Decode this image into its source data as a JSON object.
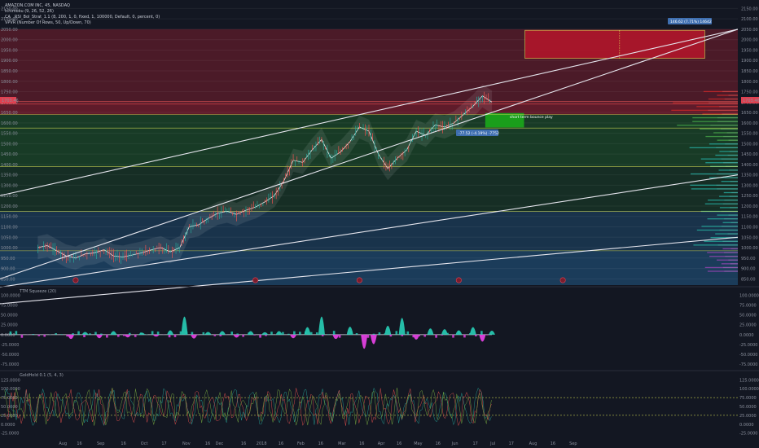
{
  "header": {
    "symbol": "AMAZON.COM INC, 45, NASDAQ",
    "indicators": [
      "Ichimoku (9, 26, 52, 26)",
      "CA__RSI_Bol_Strat_1.1 (8, 200, 1, 0, fixed, 1, 100000, Default, 0, percent, 0)",
      "VPVR (Number Of Rows, 50, Up/Down, 70)"
    ]
  },
  "price_label": "1703.46",
  "colors": {
    "bg": "#131722",
    "red_zone": "#b0162b",
    "green_zone": "#1aa31a",
    "teal": "#26c6b0",
    "magenta": "#e040e0",
    "line_white": "#e6e6ee",
    "red_band": "#7a1d2d",
    "green_band": "#1e5a2a",
    "blue_band": "#1f4a6e"
  },
  "annotations": {
    "target": "146.62 (7.71%) 14642",
    "pullback": "-77.52 (-4.19%) -7752",
    "bounce": "short term bounce play"
  },
  "panes": {
    "squeeze": "TTM Squeeze (20)",
    "oscillator": "GoldHold 0.1 (5, 4, 3)"
  },
  "chart_data": [
    {
      "type": "line",
      "name": "price",
      "x_ticks": [
        "Aug",
        "16",
        "Sep",
        "16",
        "Oct",
        "17",
        "Nov",
        "16",
        "Dec",
        "16",
        "2018",
        "16",
        "Feb",
        "16",
        "Mar",
        "16",
        "Apr",
        "16",
        "May",
        "16",
        "Jun",
        "17",
        "Jul",
        "17",
        "Aug",
        "16",
        "Sep"
      ],
      "y_ticks": [
        850,
        900,
        950,
        1000,
        1050,
        1100,
        1150,
        1200,
        1250,
        1300,
        1350,
        1400,
        1450,
        1500,
        1550,
        1600,
        1650,
        1700,
        1750,
        1800,
        1850,
        1900,
        1950,
        2000,
        2050,
        2100,
        2150
      ],
      "y_tick_labels": [
        "850.00",
        "900.00",
        "950.00",
        "1000.00",
        "1050.00",
        "1100.00",
        "1150.00",
        "1200.00",
        "1250.00",
        "1300.00",
        "1350.00",
        "1400.00",
        "1450.00",
        "1500.00",
        "1550.00",
        "1600.00",
        "1650.00",
        "1700.00",
        "1750.00",
        "1800.00",
        "1850.00",
        "1900.00",
        "1950.00",
        "2000.00",
        "2050.00",
        "2100.00",
        "2150.00"
      ],
      "ylim": [
        820,
        2175
      ],
      "x_range": [
        0,
        100
      ],
      "x_tick_positions": [
        5.3,
        8.8,
        13.3,
        18.1,
        22.5,
        26.7,
        31.4,
        35.9,
        38.4,
        43.5,
        47.3,
        51.4,
        55.6,
        59.8,
        64.3,
        68.5,
        72.6,
        76.4,
        80.4,
        84.6,
        88.2,
        92.5,
        96.2,
        100.1,
        104.7,
        108.9,
        113.2
      ],
      "x": [
        0,
        2,
        4,
        6,
        8,
        10,
        12,
        14,
        16,
        18,
        20,
        22,
        24,
        26,
        28,
        30,
        32,
        34,
        36,
        38,
        40,
        42,
        44,
        46,
        48,
        50,
        52,
        54,
        56,
        58,
        60,
        62,
        64,
        66,
        68,
        70,
        72,
        74,
        76,
        78,
        80,
        82,
        84,
        86,
        88,
        90,
        92,
        94,
        96
      ],
      "y": [
        1000,
        1010,
        985,
        960,
        950,
        970,
        975,
        990,
        960,
        955,
        965,
        975,
        990,
        1000,
        980,
        1000,
        1100,
        1110,
        1140,
        1165,
        1175,
        1160,
        1180,
        1195,
        1220,
        1250,
        1320,
        1420,
        1410,
        1470,
        1520,
        1430,
        1460,
        1510,
        1580,
        1560,
        1450,
        1380,
        1430,
        1470,
        1560,
        1540,
        1590,
        1580,
        1600,
        1640,
        1680,
        1730,
        1700
      ],
      "zones": [
        {
          "name": "red target box",
          "x0": 103,
          "x1": 141,
          "y0": 1910,
          "y1": 2045
        },
        {
          "name": "green entry box",
          "x0": 94.6,
          "x1": 102.8,
          "y0": 1578,
          "y1": 1647
        }
      ],
      "level_lines": [
        1703.46,
        1690,
        1640,
        1575,
        1390,
        1175,
        985
      ],
      "trend_lines": [
        {
          "x0": -8,
          "y0": 1250,
          "x1": 148,
          "y1": 2050
        },
        {
          "x0": -8,
          "y0": 850,
          "x1": 148,
          "y1": 2050
        },
        {
          "x0": -8,
          "y0": 810,
          "x1": 148,
          "y1": 1350
        },
        {
          "x0": -8,
          "y0": 730,
          "x1": 148,
          "y1": 1050
        }
      ]
    },
    {
      "type": "bar",
      "name": "TTM Squeeze (20)",
      "y_ticks": [
        100,
        75,
        50,
        25,
        0,
        -25,
        -50,
        -75
      ],
      "y_tick_labels": [
        "100.0000",
        "75.0000",
        "50.0000",
        "25.0000",
        "0.0000",
        "-25.0000",
        "-50.0000",
        "-75.0000"
      ],
      "ylim": [
        -85,
        105
      ],
      "spikes": [
        {
          "x": 7,
          "v": -22
        },
        {
          "x": 10,
          "v": 14
        },
        {
          "x": 13,
          "v": -18
        },
        {
          "x": 16,
          "v": 18
        },
        {
          "x": 19,
          "v": -14
        },
        {
          "x": 22,
          "v": 10
        },
        {
          "x": 25,
          "v": -10
        },
        {
          "x": 28,
          "v": 22
        },
        {
          "x": 31,
          "v": 92
        },
        {
          "x": 33,
          "v": -20
        },
        {
          "x": 36,
          "v": 14
        },
        {
          "x": 39,
          "v": 18
        },
        {
          "x": 42,
          "v": -15
        },
        {
          "x": 45,
          "v": 18
        },
        {
          "x": 48,
          "v": 12
        },
        {
          "x": 51,
          "v": 18
        },
        {
          "x": 54,
          "v": -18
        },
        {
          "x": 57,
          "v": 38
        },
        {
          "x": 60,
          "v": 92
        },
        {
          "x": 63,
          "v": -22
        },
        {
          "x": 66,
          "v": 40
        },
        {
          "x": 69,
          "v": -72
        },
        {
          "x": 71,
          "v": -48
        },
        {
          "x": 74,
          "v": 45
        },
        {
          "x": 77,
          "v": 85
        },
        {
          "x": 80,
          "v": -25
        },
        {
          "x": 83,
          "v": 32
        },
        {
          "x": 86,
          "v": 28
        },
        {
          "x": 89,
          "v": 22
        },
        {
          "x": 92,
          "v": 38
        },
        {
          "x": 94,
          "v": -35
        },
        {
          "x": 96,
          "v": 20
        }
      ]
    },
    {
      "type": "line",
      "name": "GoldHold 0.1 (5, 4, 3)",
      "y_ticks": [
        125,
        100,
        75,
        50,
        25,
        0,
        -25
      ],
      "y_tick_labels": [
        "125.0000",
        "100.0000",
        "75.0000",
        "50.0000",
        "25.0000",
        "0.0000",
        "-25.0000"
      ],
      "ylim": [
        -35,
        135
      ],
      "ref_lines": [
        75,
        25
      ]
    }
  ]
}
